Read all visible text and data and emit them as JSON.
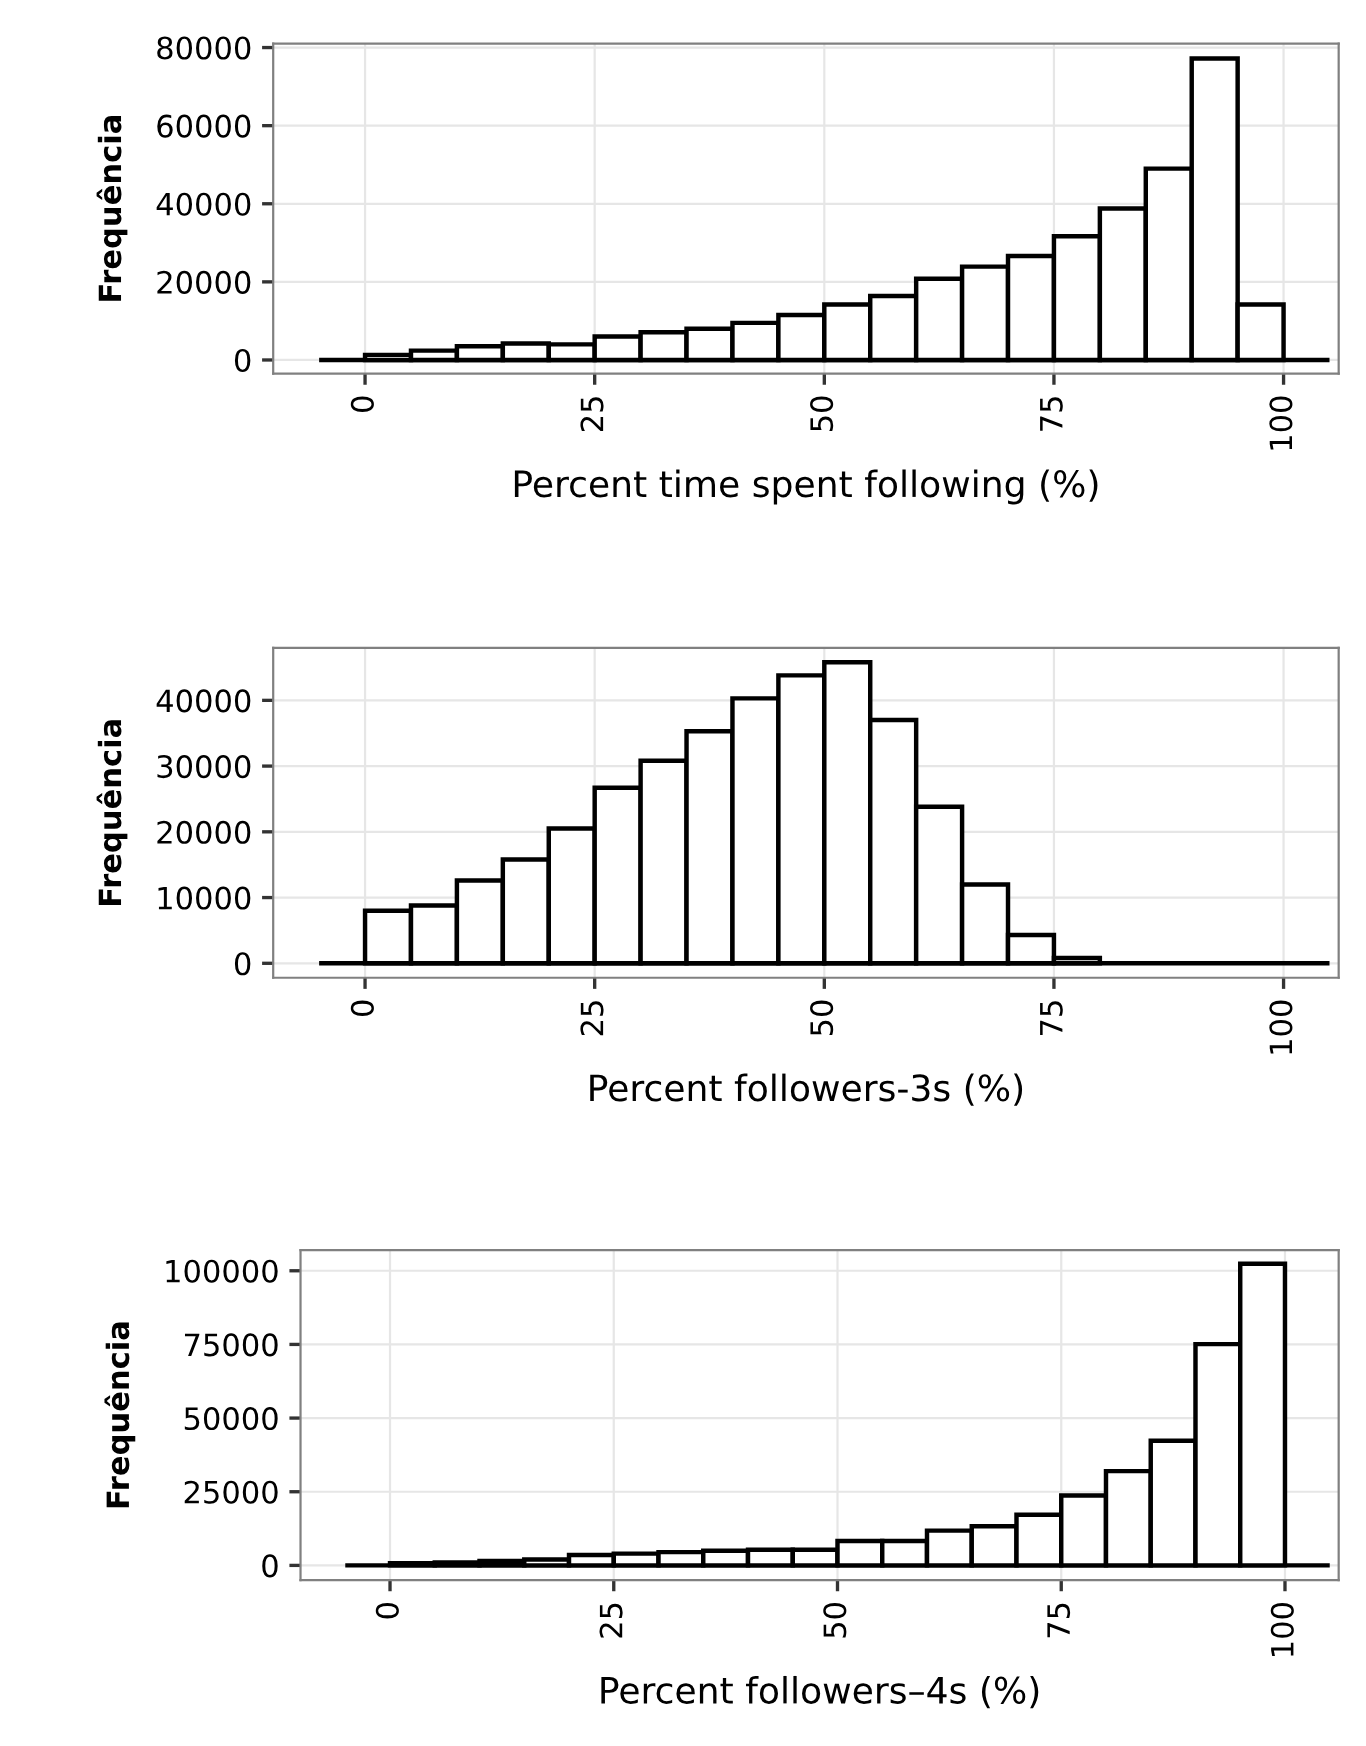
{
  "chart_data": [
    {
      "type": "histogram",
      "xlabel": "Percent time spent following (%)",
      "ylabel": "Frequência",
      "bins": [
        -5,
        0,
        5,
        10,
        15,
        20,
        25,
        30,
        35,
        40,
        45,
        50,
        55,
        60,
        65,
        70,
        75,
        80,
        85,
        90,
        95,
        100,
        105
      ],
      "values": [
        0,
        1300,
        2400,
        3500,
        4200,
        4000,
        6000,
        7100,
        8000,
        9500,
        11500,
        14200,
        16400,
        20800,
        23900,
        26600,
        31700,
        38800,
        49000,
        77200,
        14200,
        0
      ],
      "color": "#ffffff",
      "xlim": [
        -10,
        106
      ],
      "ylim": [
        -3500,
        81000
      ],
      "xticks": [
        0,
        25,
        50,
        75,
        100
      ],
      "yticks": [
        0,
        20000,
        40000,
        60000,
        80000
      ],
      "grid": true
    },
    {
      "type": "histogram",
      "xlabel": "Percent followers-3s (%)",
      "ylabel": "Frequência",
      "bins": [
        -5,
        0,
        5,
        10,
        15,
        20,
        25,
        30,
        35,
        40,
        45,
        50,
        55,
        60,
        65,
        70,
        75,
        80,
        85,
        90,
        95,
        100,
        105
      ],
      "values": [
        0,
        8000,
        8800,
        12600,
        15800,
        20500,
        26700,
        30800,
        35300,
        40300,
        43800,
        45800,
        37000,
        23800,
        12000,
        4300,
        800,
        0,
        0,
        0,
        0,
        0
      ],
      "color": "#ffffff",
      "xlim": [
        -10,
        106
      ],
      "ylim": [
        -2200,
        48000
      ],
      "xticks": [
        0,
        25,
        50,
        75,
        100
      ],
      "yticks": [
        0,
        10000,
        20000,
        30000,
        40000
      ],
      "grid": true
    },
    {
      "type": "histogram",
      "xlabel": "Percent followers–4s (%)",
      "ylabel": "Frequência",
      "bins": [
        -5,
        0,
        5,
        10,
        15,
        20,
        25,
        30,
        35,
        40,
        45,
        50,
        55,
        60,
        65,
        70,
        75,
        80,
        85,
        90,
        95,
        100,
        105
      ],
      "values": [
        0,
        700,
        1000,
        1500,
        2000,
        3500,
        4000,
        4500,
        5000,
        5300,
        5300,
        8300,
        8300,
        11800,
        13300,
        17200,
        23700,
        32000,
        42300,
        75100,
        102400,
        0
      ],
      "color": "#ffffff",
      "xlim": [
        -10,
        106
      ],
      "ylim": [
        -5000,
        107000
      ],
      "xticks": [
        0,
        25,
        50,
        75,
        100
      ],
      "yticks": [
        0,
        25000,
        50000,
        75000,
        100000
      ],
      "grid": true
    }
  ]
}
